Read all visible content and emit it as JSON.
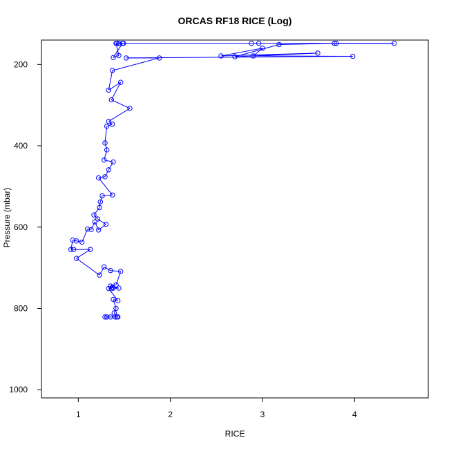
{
  "chart_data": {
    "type": "line",
    "title": "ORCAS RF18 RICE (Log)",
    "xlabel": "RICE",
    "ylabel": "Pressure (mbar)",
    "xlim": [
      0.6,
      4.8
    ],
    "ylim": [
      1020,
      140
    ],
    "y_reversed": true,
    "x_ticks": [
      1,
      2,
      3,
      4
    ],
    "x_tick_labels": [
      "1",
      "2",
      "3",
      "4"
    ],
    "y_ticks": [
      200,
      400,
      600,
      800,
      1000
    ],
    "y_tick_labels": [
      "200",
      "400",
      "600",
      "800",
      "1000"
    ],
    "grid": false,
    "legend": "none",
    "colors": {
      "series": "#0000ff",
      "axis": "#000000",
      "background": "#ffffff"
    },
    "marker": "open-circle",
    "series": [
      {
        "points": [
          [
            1.29,
            821
          ],
          [
            1.31,
            821
          ],
          [
            1.35,
            821
          ],
          [
            1.4,
            821
          ],
          [
            1.42,
            821
          ],
          [
            1.43,
            821
          ],
          [
            1.39,
            811
          ],
          [
            1.41,
            800
          ],
          [
            1.38,
            778
          ],
          [
            1.43,
            781
          ],
          [
            1.33,
            751
          ],
          [
            1.36,
            751
          ],
          [
            1.37,
            748
          ],
          [
            1.38,
            750
          ],
          [
            1.44,
            750
          ],
          [
            1.35,
            745
          ],
          [
            1.41,
            742
          ],
          [
            1.46,
            709
          ],
          [
            1.35,
            707
          ],
          [
            1.28,
            698
          ],
          [
            1.23,
            718
          ],
          [
            0.98,
            677
          ],
          [
            1.13,
            655
          ],
          [
            0.95,
            655
          ],
          [
            0.92,
            655
          ],
          [
            0.94,
            632
          ],
          [
            0.98,
            634
          ],
          [
            1.04,
            637
          ],
          [
            1.1,
            605
          ],
          [
            1.14,
            606
          ],
          [
            1.18,
            587
          ],
          [
            1.22,
            607
          ],
          [
            1.3,
            593
          ],
          [
            1.21,
            580
          ],
          [
            1.17,
            570
          ],
          [
            1.23,
            552
          ],
          [
            1.24,
            538
          ],
          [
            1.26,
            523
          ],
          [
            1.37,
            521
          ],
          [
            1.22,
            479
          ],
          [
            1.29,
            476
          ],
          [
            1.33,
            459
          ],
          [
            1.38,
            440
          ],
          [
            1.28,
            435
          ],
          [
            1.31,
            410
          ],
          [
            1.29,
            393
          ],
          [
            1.31,
            352
          ],
          [
            1.37,
            347
          ],
          [
            1.33,
            340
          ],
          [
            1.56,
            308
          ],
          [
            1.36,
            287
          ],
          [
            1.46,
            244
          ],
          [
            1.33,
            263
          ],
          [
            1.37,
            215
          ],
          [
            1.88,
            184
          ],
          [
            1.52,
            184
          ],
          [
            3.98,
            180
          ],
          [
            2.9,
            179
          ],
          [
            3.0,
            160
          ],
          [
            2.55,
            179
          ],
          [
            3.6,
            172
          ],
          [
            2.7,
            181
          ],
          [
            3.18,
            151
          ],
          [
            3.8,
            148
          ],
          [
            4.43,
            148
          ],
          [
            3.78,
            148
          ],
          [
            2.96,
            148
          ],
          [
            2.88,
            148
          ],
          [
            1.49,
            148
          ],
          [
            1.41,
            148
          ],
          [
            1.44,
            178
          ],
          [
            1.38,
            183
          ],
          [
            1.48,
            148
          ],
          [
            1.42,
            148
          ],
          [
            1.44,
            148
          ]
        ]
      }
    ]
  }
}
